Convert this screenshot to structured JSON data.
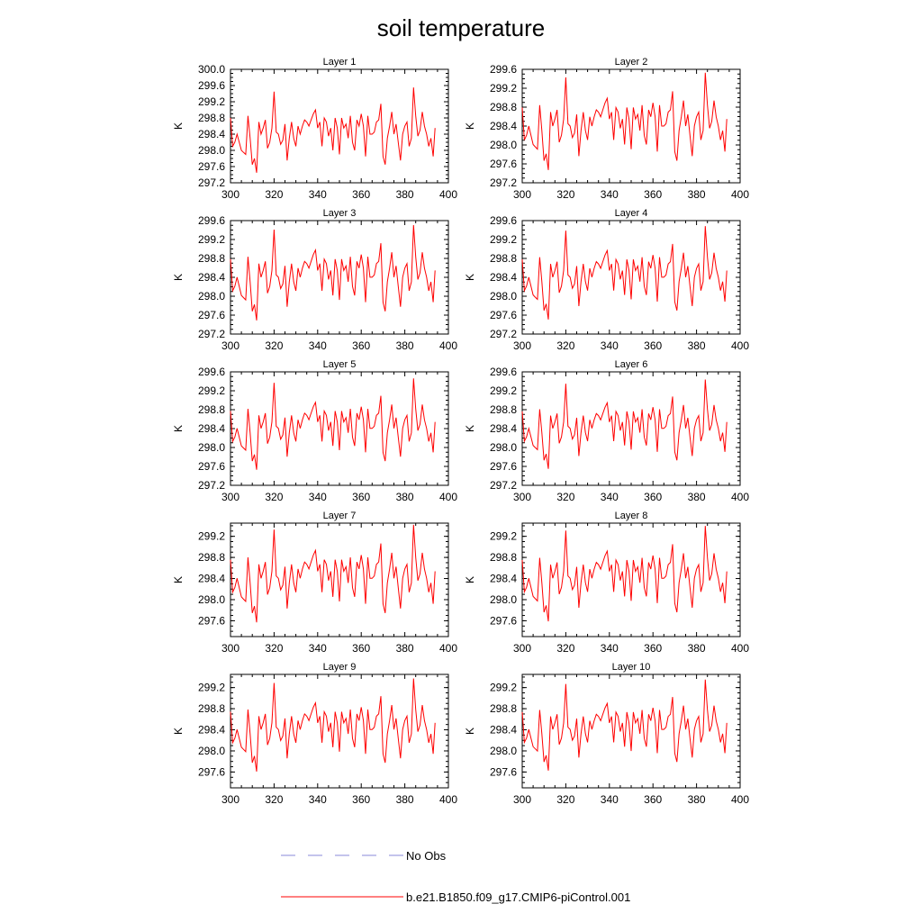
{
  "chart_data": {
    "type": "line",
    "title": "soil temperature",
    "panel_titles": [
      "Layer 1",
      "Layer 2",
      "Layer 3",
      "Layer 4",
      "Layer 5",
      "Layer 6",
      "Layer 7",
      "Layer 8",
      "Layer 9",
      "Layer 10"
    ],
    "ylabel": "K",
    "xlim": [
      300,
      400
    ],
    "xticks": [
      "300",
      "320",
      "340",
      "360",
      "380",
      "400"
    ],
    "ylims": [
      [
        297.2,
        300.0
      ],
      [
        297.2,
        299.6
      ],
      [
        297.2,
        299.6
      ],
      [
        297.2,
        299.6
      ],
      [
        297.2,
        299.6
      ],
      [
        297.2,
        299.6
      ],
      [
        297.3,
        299.45
      ],
      [
        297.3,
        299.45
      ],
      [
        297.3,
        299.45
      ],
      [
        297.3,
        299.45
      ]
    ],
    "yticks": [
      [
        "297.2",
        "297.6",
        "298.0",
        "298.4",
        "298.8",
        "299.2",
        "299.6",
        "300.0"
      ],
      [
        "297.2",
        "297.6",
        "298.0",
        "298.4",
        "298.8",
        "299.2",
        "299.6"
      ],
      [
        "297.2",
        "297.6",
        "298.0",
        "298.4",
        "298.8",
        "299.2",
        "299.6"
      ],
      [
        "297.2",
        "297.6",
        "298.0",
        "298.4",
        "298.8",
        "299.2",
        "299.6"
      ],
      [
        "297.2",
        "297.6",
        "298.0",
        "298.4",
        "298.8",
        "299.2",
        "299.6"
      ],
      [
        "297.2",
        "297.6",
        "298.0",
        "298.4",
        "298.8",
        "299.2",
        "299.6"
      ],
      [
        "297.6",
        "298.0",
        "298.4",
        "298.8",
        "299.2"
      ],
      [
        "297.6",
        "298.0",
        "298.4",
        "298.8",
        "299.2"
      ],
      [
        "297.6",
        "298.0",
        "298.4",
        "298.8",
        "299.2"
      ],
      [
        "297.6",
        "298.0",
        "298.4",
        "298.8",
        "299.2"
      ]
    ],
    "x": [
      300,
      301,
      302,
      303,
      304,
      305,
      306,
      307,
      308,
      309,
      310,
      311,
      312,
      313,
      314,
      315,
      316,
      317,
      318,
      319,
      320,
      321,
      322,
      323,
      324,
      325,
      326,
      327,
      328,
      329,
      330,
      331,
      332,
      333,
      334,
      335,
      336,
      337,
      338,
      339,
      340,
      341,
      342,
      343,
      344,
      345,
      346,
      347,
      348,
      349,
      350,
      351,
      352,
      353,
      354,
      355,
      356,
      357,
      358,
      359,
      360,
      361,
      362,
      363,
      364,
      365,
      366,
      367,
      368,
      369,
      370,
      371,
      372,
      373,
      374,
      375,
      376,
      377,
      378,
      379,
      380,
      381,
      382,
      383,
      384,
      385,
      386,
      387,
      388,
      389,
      390,
      391,
      392,
      393,
      393.9
    ],
    "base_series": [
      298.8,
      298.1,
      298.2,
      298.4,
      298.2,
      298.0,
      297.95,
      297.9,
      298.85,
      298.3,
      297.65,
      297.8,
      297.45,
      298.7,
      298.4,
      298.55,
      298.75,
      298.05,
      298.2,
      298.55,
      299.45,
      298.45,
      298.4,
      298.15,
      298.25,
      298.65,
      297.75,
      298.3,
      298.7,
      298.3,
      298.1,
      298.6,
      298.4,
      298.6,
      298.75,
      298.7,
      298.6,
      298.75,
      298.9,
      299.0,
      298.55,
      298.7,
      298.1,
      298.8,
      298.7,
      298.35,
      298.55,
      298.0,
      298.8,
      298.55,
      297.9,
      298.8,
      298.55,
      298.65,
      298.3,
      298.85,
      298.2,
      298.0,
      298.75,
      298.6,
      298.9,
      298.6,
      297.85,
      298.85,
      298.4,
      298.4,
      298.45,
      298.7,
      298.75,
      299.15,
      297.85,
      297.65,
      298.3,
      298.6,
      298.95,
      298.4,
      298.65,
      298.2,
      297.75,
      298.4,
      298.6,
      298.7,
      298.1,
      298.3,
      299.55,
      298.85,
      298.35,
      298.5,
      298.95,
      298.6,
      298.4,
      298.1,
      298.3,
      297.85,
      298.55
    ],
    "legend": [
      {
        "label": "No Obs",
        "style": "dashed",
        "color": "#8a8ad8"
      },
      {
        "label": "b.e21.B1850.f09_g17.CMIP6-piControl.001",
        "style": "solid",
        "color": "#ff0000"
      }
    ],
    "series_color": "#ff0000"
  }
}
